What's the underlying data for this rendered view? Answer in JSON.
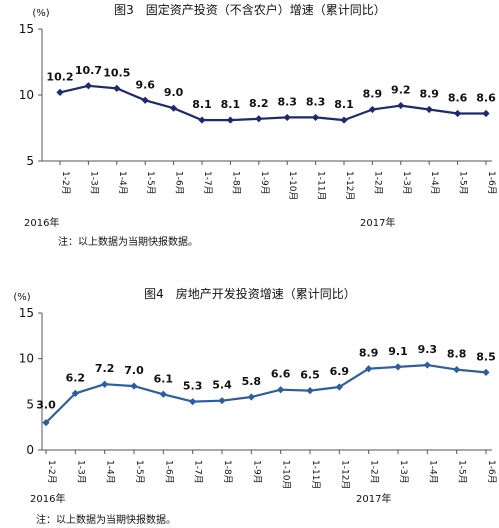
{
  "chart_data": [
    {
      "type": "line",
      "title": "图3　固定资产投资（不含农户）增速（累计同比）",
      "unit": "(%)",
      "categories": [
        "1-2月",
        "1-3月",
        "1-4月",
        "1-5月",
        "1-6月",
        "1-7月",
        "1-8月",
        "1-9月",
        "1-10月",
        "1-11月",
        "1-12月",
        "1-2月",
        "1-3月",
        "1-4月",
        "1-5月",
        "1-6月"
      ],
      "values": [
        10.2,
        10.7,
        10.5,
        9.6,
        9.0,
        8.1,
        8.1,
        8.2,
        8.3,
        8.3,
        8.1,
        8.9,
        9.2,
        8.9,
        8.6,
        8.6
      ],
      "value_labels": [
        "10.2",
        "10.7",
        "10.5",
        "9.6",
        "9.0",
        "8.1",
        "8.1",
        "8.2",
        "8.3",
        "8.3",
        "8.1",
        "8.9",
        "9.2",
        "8.9",
        "8.6",
        "8.6"
      ],
      "ylim": [
        5,
        15
      ],
      "yticks": [
        "15",
        "10",
        "5"
      ],
      "year_labels": [
        "2016年",
        "2017年"
      ],
      "note": "注：以上数据为当期快报数据。",
      "line_color": "#1f2a6e",
      "marker": "diamond",
      "axis_box": "left-bottom"
    },
    {
      "type": "line",
      "title": "图4　房地产开发投资增速（累计同比）",
      "unit": "(%)",
      "categories": [
        "1-2月",
        "1-3月",
        "1-4月",
        "1-5月",
        "1-6月",
        "1-7月",
        "1-8月",
        "1-9月",
        "1-10月",
        "1-11月",
        "1-12月",
        "1-2月",
        "1-3月",
        "1-4月",
        "1-5月",
        "1-6月"
      ],
      "values": [
        3.0,
        6.2,
        7.2,
        7.0,
        6.1,
        5.3,
        5.4,
        5.8,
        6.6,
        6.5,
        6.9,
        8.9,
        9.1,
        9.3,
        8.8,
        8.5
      ],
      "value_labels": [
        "3.0",
        "6.2",
        "7.2",
        "7.0",
        "6.1",
        "5.3",
        "5.4",
        "5.8",
        "6.6",
        "6.5",
        "6.9",
        "8.9",
        "9.1",
        "9.3",
        "8.8",
        "8.5"
      ],
      "ylim": [
        0,
        15
      ],
      "yticks": [
        "15",
        "10",
        "5",
        "0"
      ],
      "year_labels": [
        "2016年",
        "2017年"
      ],
      "note": "注：以上数据为当期快报数据。",
      "line_color": "#2d5fa0",
      "marker": "diamond",
      "axis_box": "left-bottom"
    }
  ]
}
